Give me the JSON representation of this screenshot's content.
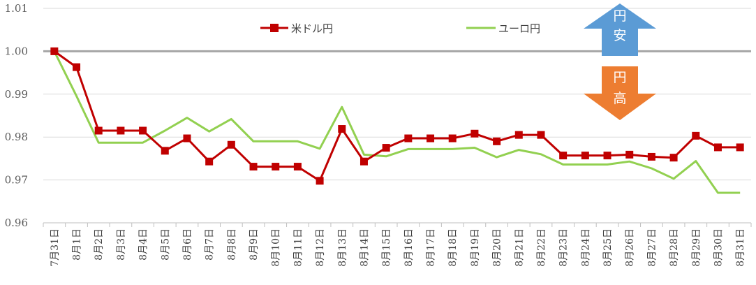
{
  "chart_data": {
    "type": "line",
    "categories": [
      "7月31日",
      "8月1日",
      "8月2日",
      "8月3日",
      "8月4日",
      "8月5日",
      "8月6日",
      "8月7日",
      "8月8日",
      "8月9日",
      "8月10日",
      "8月11日",
      "8月12日",
      "8月13日",
      "8月14日",
      "8月15日",
      "8月16日",
      "8月17日",
      "8月18日",
      "8月19日",
      "8月20日",
      "8月21日",
      "8月22日",
      "8月23日",
      "8月24日",
      "8月25日",
      "8月26日",
      "8月27日",
      "8月28日",
      "8月29日",
      "8月30日",
      "8月31日"
    ],
    "series": [
      {
        "name": "米ドル円",
        "color": "#c00000",
        "marker": "square",
        "values": [
          1.0,
          0.9963,
          0.9815,
          0.9815,
          0.9815,
          0.9768,
          0.9797,
          0.9743,
          0.9782,
          0.9731,
          0.9731,
          0.9731,
          0.9698,
          0.9819,
          0.9743,
          0.9775,
          0.9797,
          0.9797,
          0.9797,
          0.9808,
          0.979,
          0.9805,
          0.9805,
          0.9757,
          0.9757,
          0.9757,
          0.9759,
          0.9754,
          0.9752,
          0.9803,
          0.9776,
          0.9776
        ]
      },
      {
        "name": "ユーロ円",
        "color": "#92d050",
        "marker": "none",
        "values": [
          1.0,
          0.9896,
          0.9787,
          0.9787,
          0.9787,
          0.9815,
          0.9845,
          0.9813,
          0.9842,
          0.979,
          0.979,
          0.979,
          0.9773,
          0.987,
          0.9759,
          0.9755,
          0.9772,
          0.9772,
          0.9772,
          0.9775,
          0.9753,
          0.977,
          0.976,
          0.9736,
          0.9736,
          0.9736,
          0.9743,
          0.9727,
          0.9703,
          0.9744,
          0.967,
          0.967
        ]
      }
    ],
    "yticks": [
      "0.96",
      "0.97",
      "0.98",
      "0.99",
      "1.00",
      "1.01"
    ],
    "ylim": [
      0.96,
      1.01
    ],
    "reference_line": 1.0,
    "grid": true,
    "legend": "top-center"
  },
  "annotations": {
    "up_arrow": {
      "chars": [
        "円",
        "安"
      ],
      "color": "#5b9bd5"
    },
    "down_arrow": {
      "chars": [
        "円",
        "高"
      ],
      "color": "#ed7d31"
    }
  },
  "colors": {
    "reference_line": "#a6a6a6",
    "grid": "#d9d9d9"
  }
}
